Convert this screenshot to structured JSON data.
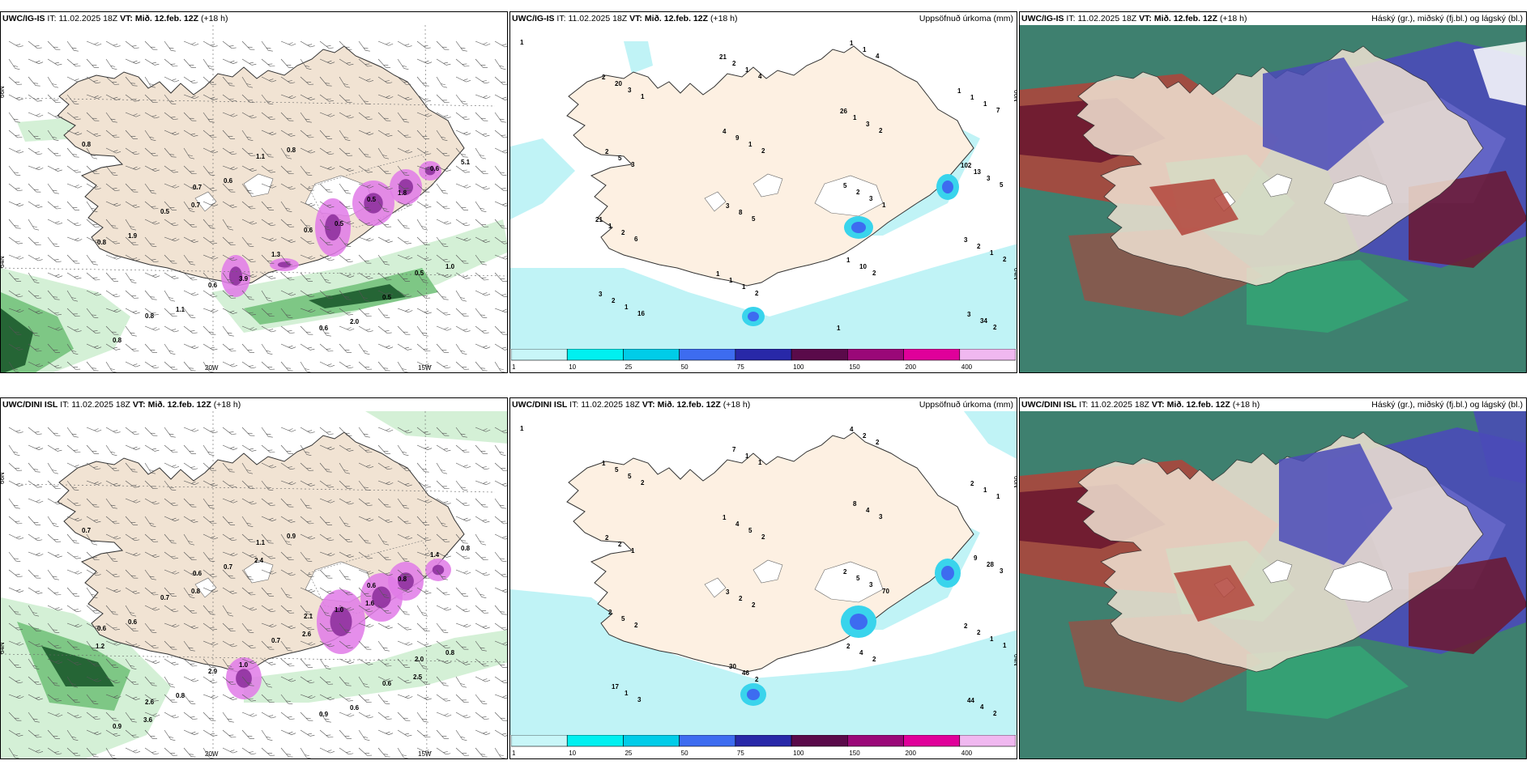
{
  "panels": [
    {
      "model": "UWC/IG-IS",
      "it_label": "IT:",
      "init_time": "11.02.2025 18Z",
      "vt_label": "VT:",
      "valid_time": "Mið. 12.feb. 12Z",
      "lead": "(+18 h)",
      "right_title": "",
      "kind": "wind",
      "lat_labels": [
        "66N",
        "64N"
      ],
      "lon_labels": [
        "20W",
        "15W"
      ],
      "values": [
        "0.8",
        "0.7",
        "0.6",
        "0.5",
        "0.8",
        "1.1",
        "0.5",
        "0.8",
        "0.6",
        "0.6",
        "0.6",
        "0.5",
        "1.3",
        "0.5",
        "0.8",
        "0.6",
        "0.5",
        "1.0",
        "1.1",
        "0.8",
        "1.8",
        "1.9",
        "3.9",
        "2.0",
        "5.1",
        "0.7"
      ]
    },
    {
      "model": "UWC/IG-IS",
      "it_label": "IT:",
      "init_time": "11.02.2025 18Z",
      "vt_label": "VT:",
      "valid_time": "Mið. 12.feb. 12Z",
      "lead": "(+18 h)",
      "right_title": "Uppsöfnuð úrkoma (mm)",
      "kind": "precip",
      "lat_labels": [
        "66N",
        "64N"
      ],
      "lon_labels": [],
      "values": [
        "1",
        "1",
        "2",
        "1",
        "2",
        "16",
        "4",
        "2",
        "5",
        "6",
        "2",
        "4",
        "7",
        "3",
        "5",
        "2",
        "2",
        "3",
        "1",
        "3",
        "1",
        "1",
        "1",
        "3",
        "3",
        "2",
        "1",
        "1",
        "1",
        "5",
        "8",
        "10",
        "34",
        "20",
        "9",
        "2",
        "2",
        "2",
        "2",
        "1",
        "13",
        "1",
        "1",
        "1",
        "1",
        "2",
        "3",
        "1",
        "3",
        "2",
        "4",
        "5",
        "3",
        "3",
        "21",
        "26",
        "102",
        "21",
        "1",
        "1",
        "1"
      ]
    },
    {
      "model": "UWC/IG-IS",
      "it_label": "IT:",
      "init_time": "11.02.2025 18Z",
      "vt_label": "VT:",
      "valid_time": "Mið. 12.feb. 12Z",
      "lead": "(+18 h)",
      "right_title": "Háský (gr.), miðský (fj.bl.) og lágský (bl.)",
      "kind": "cloud",
      "lat_labels": [],
      "lon_labels": [],
      "values": []
    },
    {
      "model": "UWC/DINI ISL",
      "it_label": "IT:",
      "init_time": "11.02.2025 18Z",
      "vt_label": "VT:",
      "valid_time": "Mið. 12.feb. 12Z",
      "lead": "(+18 h)",
      "right_title": "",
      "kind": "wind",
      "lat_labels": [
        "66N",
        "64N"
      ],
      "lon_labels": [
        "20W",
        "15W"
      ],
      "values": [
        "0.7",
        "0.6",
        "2.1",
        "2.0",
        "2.6",
        "1.1",
        "0.6",
        "0.6",
        "2.9",
        "0.9",
        "1.4",
        "0.7",
        "0.7",
        "0.6",
        "0.9",
        "0.7",
        "1.0",
        "0.8",
        "0.8",
        "0.9",
        "0.8",
        "0.6",
        "1.0",
        "0.6",
        "0.8",
        "0.8",
        "2.6",
        "2.5",
        "3.6",
        "2.4",
        "1.6",
        "1.2"
      ]
    },
    {
      "model": "UWC/DINI ISL",
      "it_label": "IT:",
      "init_time": "11.02.2025 18Z",
      "vt_label": "VT:",
      "valid_time": "Mið. 12.feb. 12Z",
      "lead": "(+18 h)",
      "right_title": "Uppsöfnuð úrkoma (mm)",
      "kind": "precip",
      "lat_labels": [
        "66N",
        "64N"
      ],
      "lon_labels": [],
      "values": [
        "1",
        "2",
        "2",
        "70",
        "1",
        "3",
        "1",
        "3",
        "3",
        "2",
        "2",
        "2",
        "1",
        "1",
        "2",
        "2",
        "2",
        "5",
        "5",
        "3",
        "1",
        "1",
        "1",
        "4",
        "28",
        "5",
        "46",
        "2",
        "1",
        "2",
        "2",
        "4",
        "4",
        "5",
        "4",
        "5",
        "2",
        "17",
        "7",
        "8",
        "9",
        "2",
        "30",
        "4",
        "2",
        "2",
        "3",
        "2",
        "44",
        "1",
        "1",
        "2",
        "2"
      ]
    },
    {
      "model": "UWC/DINI ISL",
      "it_label": "IT:",
      "init_time": "11.02.2025 18Z",
      "vt_label": "VT:",
      "valid_time": "Mið. 12.feb. 12Z",
      "lead": "(+18 h)",
      "right_title": "Háský (gr.), miðský (fj.bl.) og lágský (bl.)",
      "kind": "cloud",
      "lat_labels": [],
      "lon_labels": [],
      "values": []
    }
  ],
  "colorbar": {
    "ticks": [
      "1",
      "10",
      "25",
      "50",
      "75",
      "100",
      "150",
      "200",
      "400"
    ],
    "colors": [
      "#c8f6f8",
      "#00f0f0",
      "#00cce8",
      "#3d6cf0",
      "#2828a8",
      "#5a0a4a",
      "#9a0878",
      "#e0009a",
      "#f0b8f0"
    ]
  },
  "colors": {
    "land": "#f1e3d3",
    "land_precip": "#fdf0e2",
    "wind_green_light": "#cfeed2",
    "wind_green": "#74c27c",
    "wind_green_dark": "#1c5a2c",
    "pink": "#e07ae8",
    "purple": "#8a2c9a",
    "precip_light": "#bdf2f6",
    "precip_mid": "#39d4ec",
    "cloud_dark": "#2e5a54",
    "cloud_teal": "#4a9a82",
    "cloud_green": "#2cc07a",
    "cloud_red": "#b2433a",
    "cloud_maroon": "#6c1830",
    "cloud_blue": "#4a4ab8",
    "cloud_blue_light": "#6a6acc"
  }
}
